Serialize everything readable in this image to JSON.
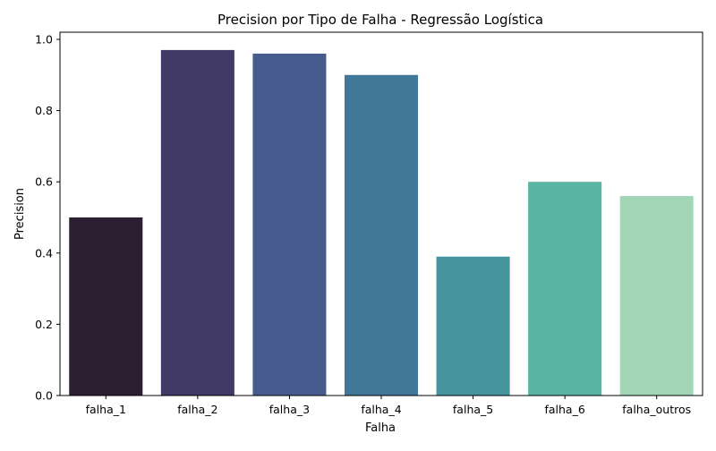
{
  "chart_data": {
    "type": "bar",
    "title": "Precision por Tipo de Falha - Regressão Logística",
    "xlabel": "Falha",
    "ylabel": "Precision",
    "categories": [
      "falha_1",
      "falha_2",
      "falha_3",
      "falha_4",
      "falha_5",
      "falha_6",
      "falha_outros"
    ],
    "values": [
      0.5,
      0.97,
      0.96,
      0.9,
      0.39,
      0.6,
      0.56
    ],
    "colors": [
      "#2b1f31",
      "#413a66",
      "#475b8f",
      "#417898",
      "#45949e",
      "#59b4a4",
      "#a1d5b6"
    ],
    "ylim": [
      0,
      1.02
    ],
    "yticks": [
      0.0,
      0.2,
      0.4,
      0.6,
      0.8,
      1.0
    ],
    "ytick_labels": [
      "0.0",
      "0.2",
      "0.4",
      "0.6",
      "0.8",
      "1.0"
    ],
    "grid": false,
    "legend": "none"
  }
}
